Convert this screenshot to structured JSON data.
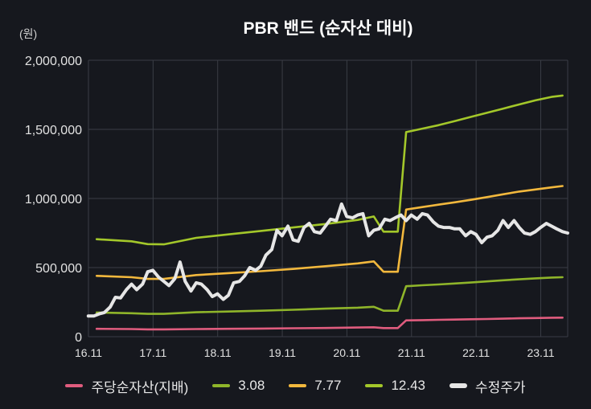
{
  "chart_data": {
    "type": "line",
    "title": "PBR 밴드 (순자산 대비)",
    "unit_label": "(원)",
    "ylim": [
      0,
      2000000
    ],
    "yticks": [
      0,
      500000,
      1000000,
      1500000,
      2000000
    ],
    "ytick_labels": [
      "0",
      "500,000",
      "1,000,000",
      "1,500,000",
      "2,000,000"
    ],
    "xlim": [
      2016.833,
      2024.25
    ],
    "xticks": [
      2016.833,
      2017.833,
      2018.833,
      2019.833,
      2020.833,
      2021.833,
      2022.833,
      2023.833
    ],
    "xtick_labels": [
      "16.11",
      "17.11",
      "18.11",
      "19.11",
      "20.11",
      "21.11",
      "22.11",
      "23.11"
    ],
    "grid": true,
    "legend": "bottom",
    "series": [
      {
        "name": "주당순자산(지배)",
        "color": "#e05c7e",
        "x": [
          2016.96,
          2017.5,
          2017.75,
          2018.0,
          2018.5,
          2019.0,
          2019.5,
          2020.0,
          2020.5,
          2021.0,
          2021.25,
          2021.4,
          2021.62,
          2021.75,
          2022.0,
          2022.25,
          2022.5,
          2022.75,
          2023.0,
          2023.25,
          2023.5,
          2023.75,
          2024.0,
          2024.17
        ],
        "y": [
          57000,
          55000,
          53000,
          53000,
          55000,
          57000,
          59000,
          61000,
          63000,
          66000,
          68000,
          62000,
          62000,
          118000,
          120000,
          122000,
          124000,
          126000,
          128000,
          130000,
          133000,
          135000,
          137000,
          138000
        ]
      },
      {
        "name": "3.08",
        "color": "#8fb52a",
        "x": [
          2016.96,
          2017.5,
          2017.75,
          2018.0,
          2018.5,
          2019.0,
          2019.5,
          2020.0,
          2020.5,
          2021.0,
          2021.25,
          2021.4,
          2021.62,
          2021.75,
          2022.0,
          2022.25,
          2022.5,
          2022.75,
          2023.0,
          2023.25,
          2023.5,
          2023.75,
          2024.0,
          2024.17
        ],
        "y": [
          175000,
          170000,
          165000,
          165000,
          177000,
          182000,
          188000,
          195000,
          203000,
          210000,
          216000,
          188000,
          188000,
          365000,
          372000,
          378000,
          385000,
          392000,
          400000,
          408000,
          415000,
          422000,
          428000,
          430000
        ]
      },
      {
        "name": "7.77",
        "color": "#f2b83d",
        "x": [
          2016.96,
          2017.5,
          2017.75,
          2018.0,
          2018.5,
          2019.0,
          2019.5,
          2020.0,
          2020.5,
          2021.0,
          2021.25,
          2021.4,
          2021.62,
          2021.75,
          2022.0,
          2022.25,
          2022.5,
          2022.75,
          2023.0,
          2023.25,
          2023.5,
          2023.75,
          2024.0,
          2024.17
        ],
        "y": [
          440000,
          430000,
          418000,
          418000,
          446000,
          460000,
          474000,
          490000,
          510000,
          530000,
          545000,
          470000,
          470000,
          920000,
          938000,
          955000,
          972000,
          990000,
          1010000,
          1030000,
          1050000,
          1065000,
          1080000,
          1090000
        ]
      },
      {
        "name": "12.43",
        "color": "#a3c72a",
        "x": [
          2016.96,
          2017.5,
          2017.75,
          2018.0,
          2018.5,
          2019.0,
          2019.5,
          2020.0,
          2020.5,
          2021.0,
          2021.25,
          2021.4,
          2021.62,
          2021.75,
          2022.0,
          2022.25,
          2022.5,
          2022.75,
          2023.0,
          2023.25,
          2023.5,
          2023.75,
          2024.0,
          2024.17
        ],
        "y": [
          705000,
          690000,
          670000,
          668000,
          715000,
          740000,
          765000,
          790000,
          815000,
          845000,
          870000,
          760000,
          760000,
          1480000,
          1505000,
          1530000,
          1560000,
          1590000,
          1620000,
          1650000,
          1680000,
          1710000,
          1735000,
          1745000
        ]
      },
      {
        "name": "수정주가",
        "color": "#e6e6e6",
        "x": [
          2016.83,
          2016.92,
          2017.0,
          2017.08,
          2017.17,
          2017.25,
          2017.33,
          2017.42,
          2017.5,
          2017.58,
          2017.67,
          2017.75,
          2017.83,
          2017.92,
          2018.0,
          2018.08,
          2018.17,
          2018.25,
          2018.33,
          2018.42,
          2018.5,
          2018.58,
          2018.67,
          2018.75,
          2018.83,
          2018.92,
          2019.0,
          2019.08,
          2019.17,
          2019.25,
          2019.33,
          2019.42,
          2019.5,
          2019.58,
          2019.67,
          2019.75,
          2019.83,
          2019.92,
          2020.0,
          2020.08,
          2020.17,
          2020.25,
          2020.33,
          2020.42,
          2020.5,
          2020.58,
          2020.67,
          2020.75,
          2020.83,
          2020.92,
          2021.0,
          2021.08,
          2021.17,
          2021.25,
          2021.33,
          2021.42,
          2021.5,
          2021.58,
          2021.67,
          2021.75,
          2021.83,
          2021.92,
          2022.0,
          2022.08,
          2022.17,
          2022.25,
          2022.33,
          2022.42,
          2022.5,
          2022.58,
          2022.67,
          2022.75,
          2022.83,
          2022.92,
          2023.0,
          2023.08,
          2023.17,
          2023.25,
          2023.33,
          2023.42,
          2023.5,
          2023.58,
          2023.67,
          2023.75,
          2023.83,
          2023.92,
          2024.0,
          2024.08,
          2024.17,
          2024.25
        ],
        "y": [
          150000,
          150000,
          165000,
          175000,
          215000,
          285000,
          280000,
          340000,
          380000,
          340000,
          380000,
          470000,
          480000,
          430000,
          400000,
          370000,
          420000,
          540000,
          400000,
          330000,
          390000,
          380000,
          340000,
          290000,
          310000,
          270000,
          300000,
          390000,
          400000,
          440000,
          500000,
          480000,
          510000,
          590000,
          630000,
          770000,
          730000,
          800000,
          700000,
          690000,
          790000,
          820000,
          760000,
          750000,
          800000,
          850000,
          840000,
          960000,
          870000,
          860000,
          880000,
          890000,
          730000,
          770000,
          780000,
          850000,
          840000,
          860000,
          880000,
          840000,
          880000,
          850000,
          890000,
          880000,
          830000,
          800000,
          790000,
          790000,
          780000,
          780000,
          730000,
          760000,
          740000,
          680000,
          720000,
          730000,
          770000,
          840000,
          790000,
          840000,
          790000,
          750000,
          740000,
          760000,
          790000,
          820000,
          800000,
          780000,
          760000,
          750000
        ]
      }
    ]
  }
}
